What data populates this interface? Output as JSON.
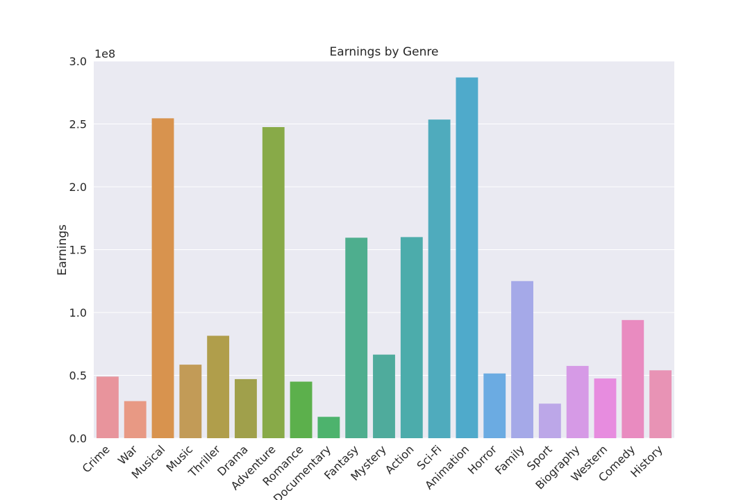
{
  "chart_data": {
    "type": "bar",
    "title": "Earnings by Genre",
    "xlabel": "",
    "ylabel": "Earnings",
    "y_offset_label": "1e8",
    "ylim": [
      0,
      300000000.0
    ],
    "yticks": [
      0.0,
      50000000.0,
      100000000.0,
      150000000.0,
      200000000.0,
      250000000.0,
      300000000.0
    ],
    "ytick_labels": [
      "0.0",
      "0.5",
      "1.0",
      "1.5",
      "2.0",
      "2.5",
      "3.0"
    ],
    "grid": true,
    "background": "#eaeaf2",
    "categories": [
      "Crime",
      "War",
      "Musical",
      "Music",
      "Thriller",
      "Drama",
      "Adventure",
      "Romance",
      "Documentary",
      "Fantasy",
      "Mystery",
      "Action",
      "Sci-Fi",
      "Animation",
      "Horror",
      "Family",
      "Sport",
      "Biography",
      "Western",
      "Comedy",
      "History"
    ],
    "values": [
      49000000,
      29500000,
      254500000,
      58500000,
      81500000,
      47000000,
      247500000,
      45000000,
      17000000,
      159500000,
      66500000,
      160000000,
      253500000,
      287000000,
      51500000,
      125000000,
      27500000,
      57500000,
      47500000,
      94000000,
      54000000
    ],
    "colors": [
      "#e8949c",
      "#e89984",
      "#d8934e",
      "#c29b57",
      "#b09e4b",
      "#a0a04b",
      "#88aa48",
      "#5cb04c",
      "#4db36d",
      "#4eae8e",
      "#4fab9c",
      "#4cacab",
      "#4fabbd",
      "#4faacb",
      "#6babe2",
      "#a5a9e8",
      "#bca7e8",
      "#d69ae6",
      "#e78cdf",
      "#e98bc0",
      "#e893b5"
    ]
  }
}
